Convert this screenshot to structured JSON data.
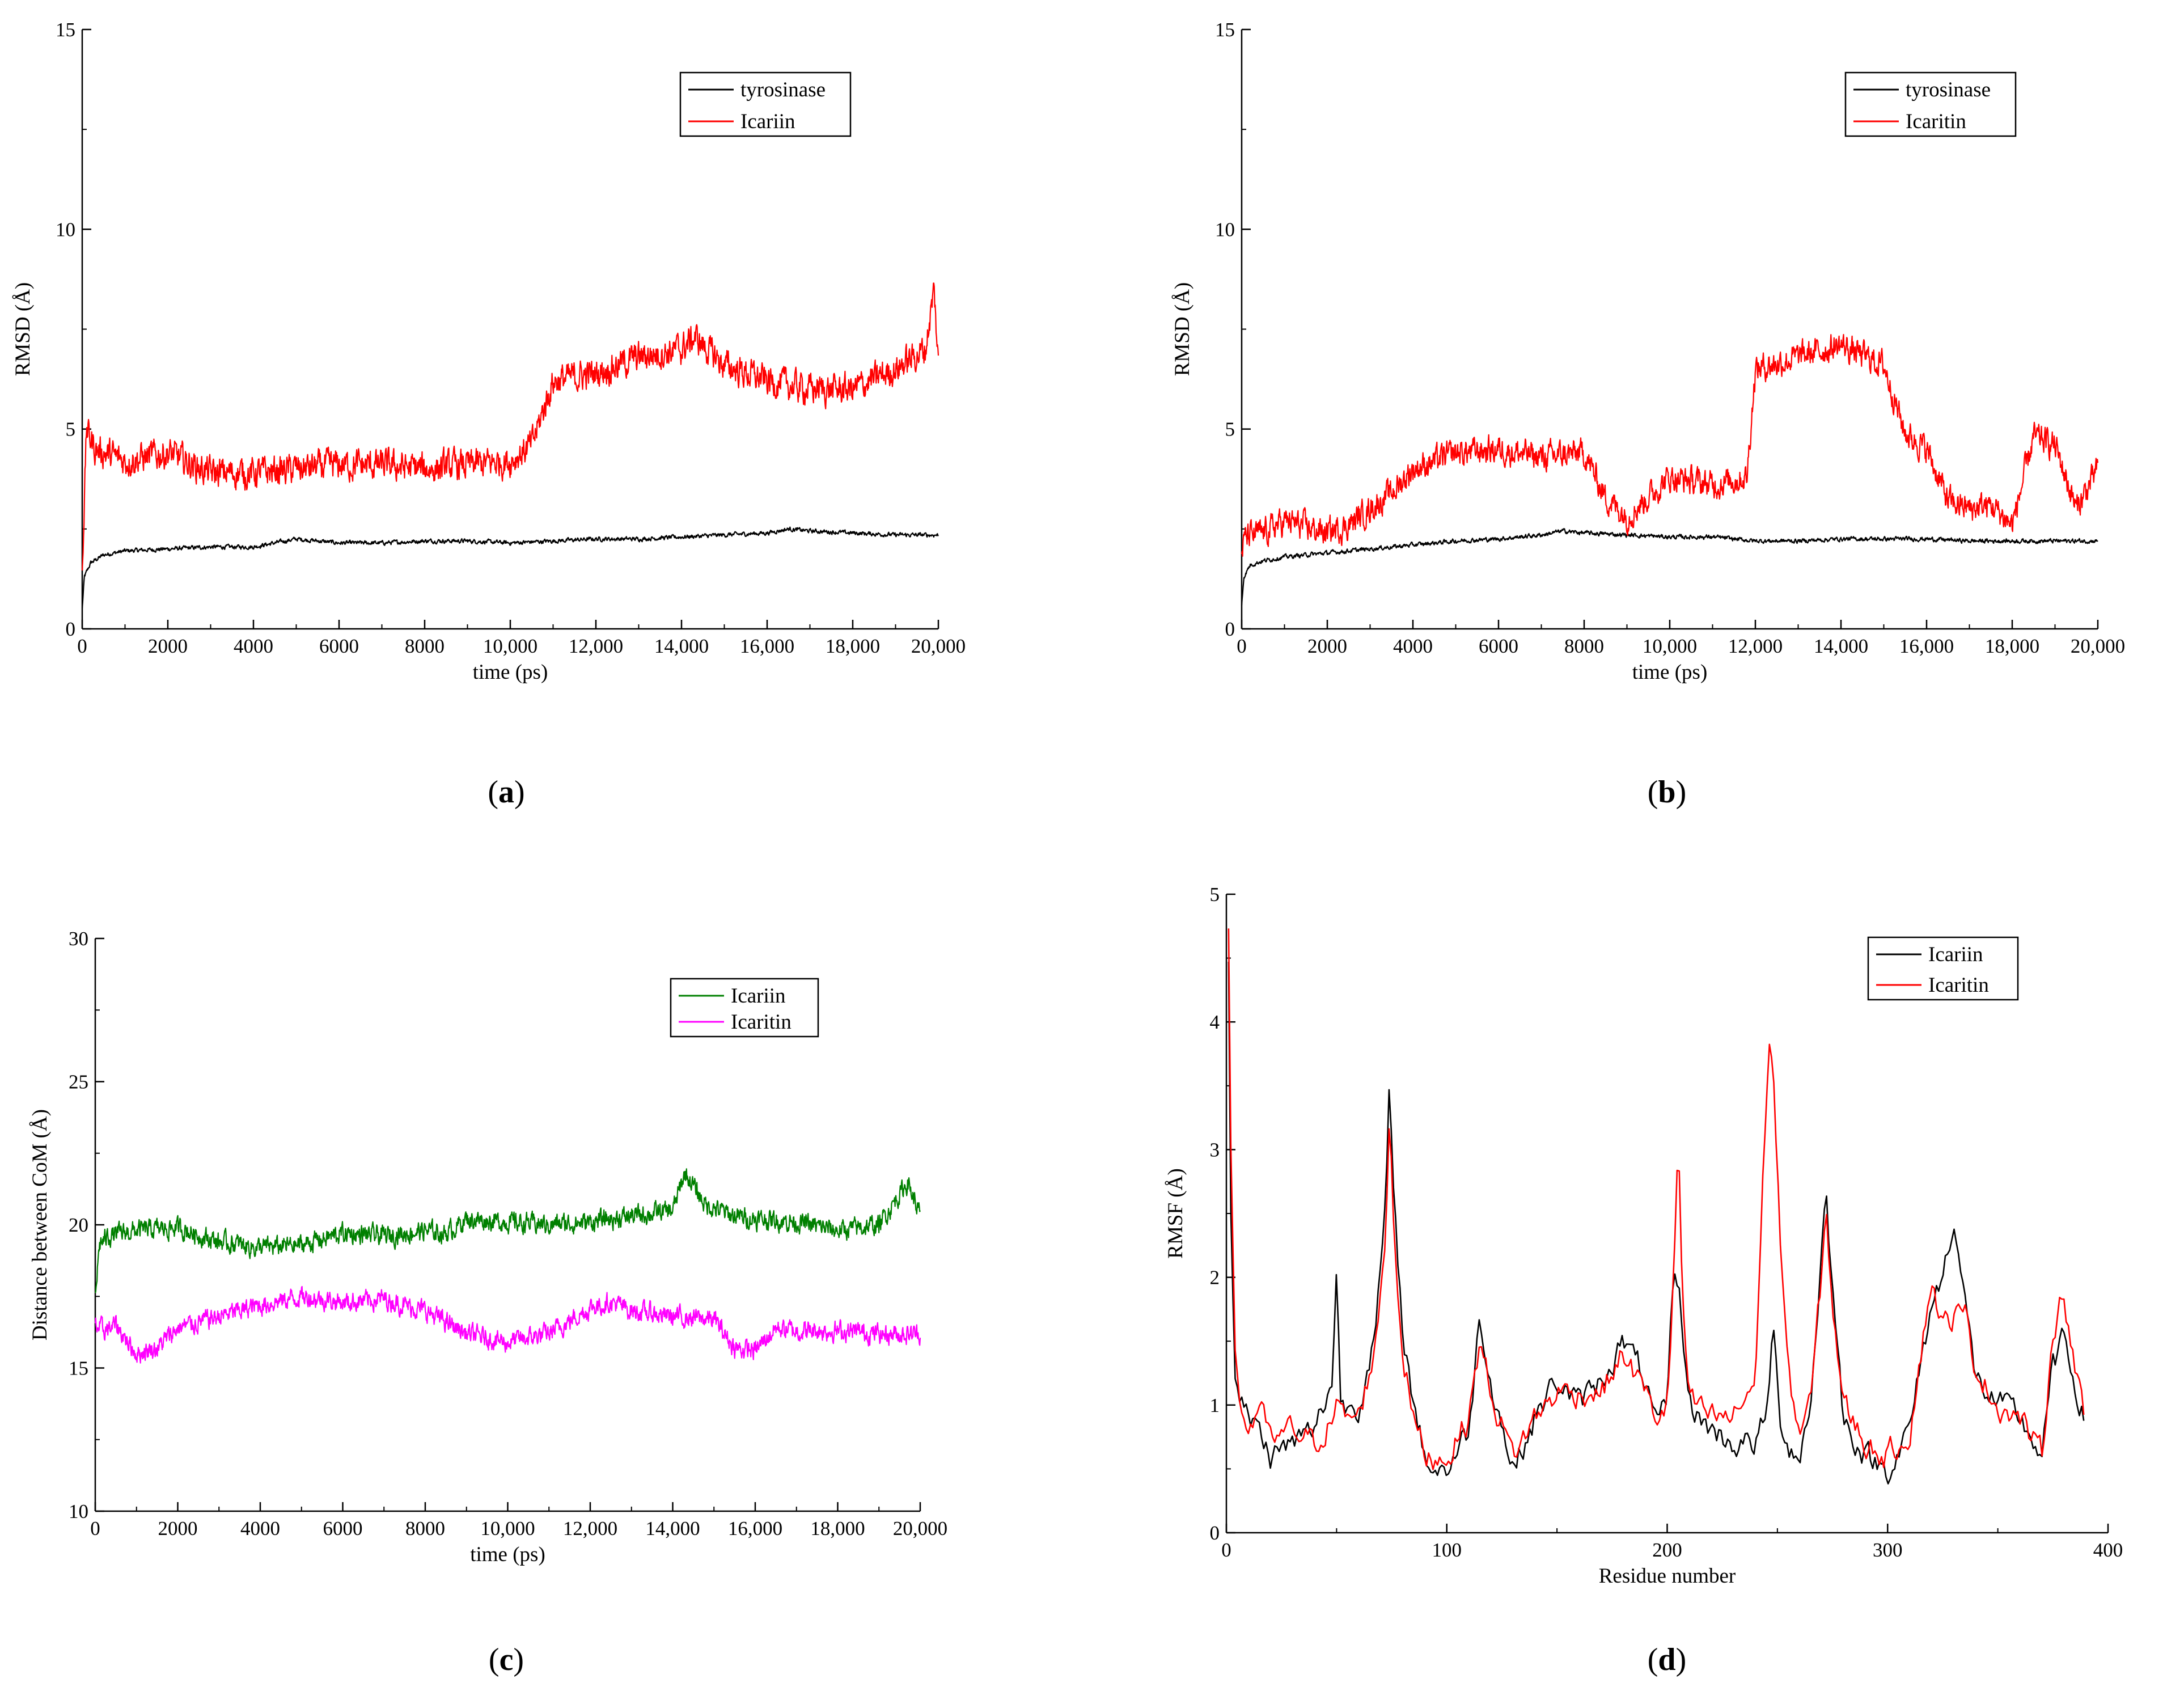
{
  "figure": {
    "panels_note": "Four molecular dynamics panels (a)-(d)"
  },
  "chart_data": [
    {
      "id": "a",
      "type": "line",
      "caption_letter": "a",
      "xlabel": "time (ps)",
      "ylabel": "RMSD (Å)",
      "xlim": [
        0,
        20000
      ],
      "ylim": [
        0,
        15
      ],
      "xticks": [
        0,
        2000,
        4000,
        6000,
        8000,
        10000,
        12000,
        14000,
        16000,
        18000,
        20000
      ],
      "xtick_labels": [
        "0",
        "2000",
        "4000",
        "6000",
        "8000",
        "10,000",
        "12,000",
        "14,000",
        "16,000",
        "18,000",
        "20,000"
      ],
      "yticks": [
        0,
        5,
        10,
        15
      ],
      "ytick_labels": [
        "0",
        "5",
        "10",
        "15"
      ],
      "legend_position": "top-right",
      "series": [
        {
          "name": "tyrosinase",
          "color": "#000000",
          "noise": 0.07,
          "x": [
            0,
            50,
            200,
            500,
            1000,
            2000,
            3000,
            4000,
            5000,
            6000,
            7000,
            8000,
            9000,
            10000,
            11000,
            12000,
            13000,
            14000,
            15000,
            16000,
            16500,
            17000,
            18000,
            19000,
            20000
          ],
          "y": [
            0.5,
            1.3,
            1.65,
            1.85,
            1.95,
            2.0,
            2.05,
            2.05,
            2.25,
            2.15,
            2.15,
            2.2,
            2.2,
            2.15,
            2.2,
            2.25,
            2.25,
            2.3,
            2.35,
            2.4,
            2.5,
            2.45,
            2.4,
            2.35,
            2.35
          ]
        },
        {
          "name": "Icariin",
          "color": "#ff0000",
          "noise": 0.5,
          "x": [
            0,
            100,
            300,
            1000,
            2000,
            3000,
            4000,
            5000,
            6000,
            7000,
            8000,
            9000,
            10000,
            10500,
            11000,
            12000,
            13000,
            14000,
            14300,
            15000,
            16000,
            17000,
            18000,
            19000,
            19700,
            19900,
            20000
          ],
          "y": [
            1.5,
            5.0,
            4.5,
            4.2,
            4.4,
            3.9,
            3.9,
            4.0,
            4.1,
            4.1,
            4.0,
            4.1,
            4.2,
            4.6,
            6.2,
            6.4,
            6.8,
            7.0,
            7.3,
            6.6,
            6.2,
            6.0,
            6.0,
            6.5,
            7.0,
            8.5,
            6.6
          ]
        }
      ]
    },
    {
      "id": "b",
      "type": "line",
      "caption_letter": "b",
      "xlabel": "time (ps)",
      "ylabel": "RMSD (Å)",
      "xlim": [
        0,
        20000
      ],
      "ylim": [
        0,
        15
      ],
      "xticks": [
        0,
        2000,
        4000,
        6000,
        8000,
        10000,
        12000,
        14000,
        16000,
        18000,
        20000
      ],
      "xtick_labels": [
        "0",
        "2000",
        "4000",
        "6000",
        "8000",
        "10,000",
        "12,000",
        "14,000",
        "16,000",
        "18,000",
        "20,000"
      ],
      "yticks": [
        0,
        5,
        10,
        15
      ],
      "ytick_labels": [
        "0",
        "5",
        "10",
        "15"
      ],
      "legend_position": "top-right",
      "series": [
        {
          "name": "tyrosinase",
          "color": "#000000",
          "noise": 0.07,
          "x": [
            0,
            50,
            200,
            500,
            1000,
            2000,
            3000,
            4000,
            5000,
            6000,
            7000,
            7500,
            8000,
            9000,
            10000,
            11000,
            12000,
            13000,
            14000,
            15000,
            16000,
            17000,
            18000,
            19000,
            20000
          ],
          "y": [
            0.6,
            1.3,
            1.6,
            1.7,
            1.8,
            1.9,
            2.0,
            2.1,
            2.2,
            2.25,
            2.35,
            2.45,
            2.4,
            2.35,
            2.3,
            2.3,
            2.2,
            2.2,
            2.25,
            2.25,
            2.25,
            2.2,
            2.2,
            2.2,
            2.2
          ]
        },
        {
          "name": "Icaritin",
          "color": "#ff0000",
          "noise": 0.45,
          "x": [
            0,
            100,
            500,
            1000,
            2000,
            2500,
            3000,
            3500,
            4000,
            5000,
            6000,
            7000,
            8000,
            8500,
            9000,
            10000,
            11000,
            11800,
            12000,
            13000,
            14000,
            15000,
            15500,
            16000,
            16500,
            17000,
            17500,
            18000,
            18500,
            19000,
            19500,
            20000
          ],
          "y": [
            2.0,
            2.3,
            2.4,
            2.7,
            2.4,
            2.6,
            3.0,
            3.4,
            4.0,
            4.4,
            4.5,
            4.3,
            4.4,
            3.3,
            2.8,
            3.8,
            3.6,
            3.8,
            6.5,
            6.8,
            7.1,
            6.6,
            4.9,
            4.5,
            3.2,
            3.0,
            3.1,
            2.6,
            4.8,
            4.6,
            3.0,
            4.0
          ]
        }
      ]
    },
    {
      "id": "c",
      "type": "line",
      "caption_letter": "c",
      "xlabel": "time (ps)",
      "ylabel": "Distance between CoM (Å)",
      "xlim": [
        0,
        20000
      ],
      "ylim": [
        10,
        30
      ],
      "xticks": [
        0,
        2000,
        4000,
        6000,
        8000,
        10000,
        12000,
        14000,
        16000,
        18000,
        20000
      ],
      "xtick_labels": [
        "0",
        "2000",
        "4000",
        "6000",
        "8000",
        "10,000",
        "12,000",
        "14,000",
        "16,000",
        "18,000",
        "20,000"
      ],
      "yticks": [
        10,
        15,
        20,
        25,
        30
      ],
      "ytick_labels": [
        "10",
        "15",
        "20",
        "25",
        "30"
      ],
      "legend_position": "top-right",
      "series": [
        {
          "name": "Icariin",
          "color": "#008000",
          "noise": 0.45,
          "x": [
            0,
            100,
            300,
            1000,
            2000,
            3000,
            4000,
            5000,
            6000,
            7000,
            8000,
            8500,
            9000,
            10000,
            11000,
            12000,
            13000,
            14000,
            14300,
            14800,
            15500,
            16000,
            17000,
            18000,
            19000,
            19700,
            20000
          ],
          "y": [
            17.5,
            19.3,
            19.6,
            19.8,
            19.9,
            19.4,
            19.2,
            19.3,
            19.7,
            19.6,
            19.8,
            19.7,
            20.2,
            20.1,
            20.0,
            20.1,
            20.3,
            20.5,
            21.8,
            20.7,
            20.3,
            20.2,
            20.1,
            19.8,
            20.0,
            21.5,
            20.3
          ]
        },
        {
          "name": "Icaritin",
          "color": "#ff00ff",
          "noise": 0.45,
          "x": [
            0,
            200,
            500,
            1000,
            1500,
            2000,
            3000,
            4000,
            5000,
            6000,
            7000,
            8000,
            9000,
            10000,
            11000,
            12000,
            12500,
            13000,
            14000,
            15000,
            15500,
            16000,
            16500,
            17000,
            18000,
            19000,
            20000
          ],
          "y": [
            16.5,
            16.3,
            16.5,
            15.5,
            15.7,
            16.4,
            16.8,
            17.2,
            17.5,
            17.3,
            17.4,
            17.0,
            16.2,
            15.9,
            16.2,
            17.1,
            17.3,
            17.0,
            16.8,
            16.7,
            15.7,
            15.6,
            16.4,
            16.3,
            16.3,
            16.2,
            16.2
          ]
        }
      ]
    },
    {
      "id": "d",
      "type": "line",
      "caption_letter": "d",
      "xlabel": "Residue number",
      "ylabel": "RMSF (Å)",
      "xlim": [
        0,
        400
      ],
      "ylim": [
        0,
        5
      ],
      "xticks": [
        0,
        100,
        200,
        300,
        400
      ],
      "xtick_labels": [
        "0",
        "100",
        "200",
        "300",
        "400"
      ],
      "yticks": [
        0,
        1,
        2,
        3,
        4,
        5
      ],
      "ytick_labels": [
        "0",
        "1",
        "2",
        "3",
        "4",
        "5"
      ],
      "legend_position": "top-right",
      "series": [
        {
          "name": "Icariin",
          "color": "#000000",
          "noise": 0.15,
          "x": [
            1,
            2,
            4,
            6,
            10,
            15,
            20,
            30,
            40,
            48,
            50,
            52,
            60,
            68,
            72,
            74,
            76,
            80,
            85,
            90,
            95,
            100,
            110,
            115,
            120,
            130,
            140,
            150,
            160,
            170,
            180,
            190,
            195,
            200,
            203,
            206,
            210,
            220,
            230,
            240,
            245,
            248,
            251,
            255,
            260,
            265,
            270,
            272,
            275,
            280,
            290,
            300,
            310,
            320,
            325,
            330,
            335,
            340,
            350,
            360,
            370,
            375,
            380,
            385,
            389
          ],
          "y": [
            4.5,
            2.5,
            1.3,
            1.0,
            0.9,
            0.8,
            0.6,
            0.7,
            0.8,
            1.2,
            2.05,
            1.0,
            1.0,
            1.6,
            2.5,
            3.5,
            2.5,
            1.6,
            1.0,
            0.6,
            0.5,
            0.5,
            0.8,
            1.7,
            1.2,
            0.5,
            0.9,
            1.2,
            1.0,
            1.2,
            1.5,
            1.2,
            0.8,
            1.0,
            2.1,
            1.8,
            1.0,
            0.8,
            0.7,
            0.7,
            0.9,
            1.6,
            0.9,
            0.7,
            0.6,
            1.0,
            2.2,
            2.65,
            1.9,
            0.9,
            0.6,
            0.5,
            0.8,
            1.8,
            2.0,
            2.5,
            1.8,
            1.2,
            1.0,
            0.9,
            0.6,
            1.3,
            1.5,
            1.2,
            0.9
          ]
        },
        {
          "name": "Icaritin",
          "color": "#ff0000",
          "noise": 0.15,
          "x": [
            1,
            2,
            4,
            6,
            10,
            15,
            20,
            30,
            40,
            48,
            50,
            52,
            60,
            68,
            72,
            74,
            76,
            80,
            85,
            90,
            95,
            100,
            110,
            115,
            120,
            130,
            140,
            150,
            160,
            170,
            180,
            190,
            195,
            200,
            203,
            205,
            207,
            210,
            220,
            230,
            240,
            244,
            246,
            248,
            251,
            255,
            260,
            265,
            270,
            272,
            275,
            280,
            290,
            300,
            310,
            320,
            325,
            330,
            335,
            340,
            350,
            360,
            370,
            375,
            380,
            385,
            389
          ],
          "y": [
            4.65,
            3.0,
            1.5,
            1.0,
            0.8,
            1.0,
            0.7,
            0.8,
            0.7,
            0.9,
            1.0,
            0.9,
            0.9,
            1.5,
            2.3,
            3.3,
            2.4,
            1.4,
            0.9,
            0.6,
            0.6,
            0.6,
            0.9,
            1.5,
            1.1,
            0.6,
            0.9,
            1.1,
            1.1,
            1.1,
            1.4,
            1.1,
            0.9,
            1.0,
            2.0,
            3.1,
            1.8,
            1.0,
            0.9,
            0.9,
            1.2,
            3.0,
            3.85,
            3.7,
            2.4,
            1.2,
            0.8,
            1.0,
            2.0,
            2.5,
            1.8,
            1.0,
            0.7,
            0.6,
            0.8,
            2.0,
            1.6,
            1.7,
            1.7,
            1.3,
            1.0,
            0.9,
            0.6,
            1.6,
            1.9,
            1.3,
            0.9
          ]
        }
      ]
    }
  ]
}
